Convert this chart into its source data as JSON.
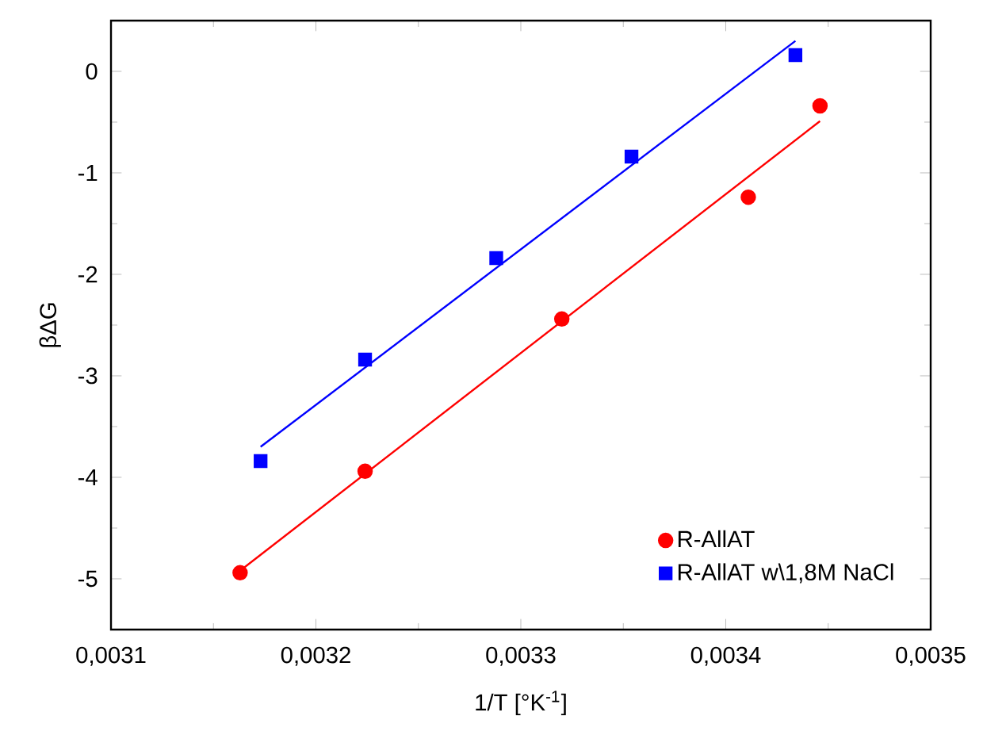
{
  "chart_data": {
    "type": "scatter",
    "xlabel": "1/T [°K$^{-1}$]",
    "ylabel": "βΔG",
    "xlim": [
      0.0031,
      0.0035
    ],
    "ylim": [
      -5.5,
      0.5
    ],
    "xticks": [
      {
        "value": 0.0031,
        "label": "0,0031"
      },
      {
        "value": 0.0032,
        "label": "0,0032"
      },
      {
        "value": 0.0033,
        "label": "0,0033"
      },
      {
        "value": 0.0034,
        "label": "0,0034"
      },
      {
        "value": 0.0035,
        "label": "0,0035"
      }
    ],
    "yticks": [
      -5,
      -4,
      -3,
      -2,
      -1,
      0
    ],
    "legend": "bottom right",
    "series": [
      {
        "name": "R-AllAT",
        "color": "#ff0000",
        "marker": "circle",
        "x": [
          0.003163,
          0.003224,
          0.00332,
          0.003411,
          0.003446
        ],
        "values": [
          -4.94,
          -3.94,
          -2.44,
          -1.24,
          -0.34
        ]
      },
      {
        "name": "R-AllAT w\\1,8M NaCl",
        "color": "#0000ff",
        "marker": "square",
        "x": [
          0.003173,
          0.003224,
          0.003288,
          0.003354,
          0.003434
        ],
        "values": [
          -3.84,
          -2.84,
          -1.84,
          -0.84,
          0.16
        ]
      },
      {
        "type": "line",
        "color": "#ff0000",
        "marker": "none",
        "x": [
          0.003163,
          0.003446
        ],
        "values": [
          -4.92,
          -0.49
        ]
      },
      {
        "type": "line",
        "color": "#0000ff",
        "marker": "none",
        "x": [
          0.003173,
          0.003434
        ],
        "values": [
          -3.7,
          0.3
        ]
      }
    ]
  }
}
